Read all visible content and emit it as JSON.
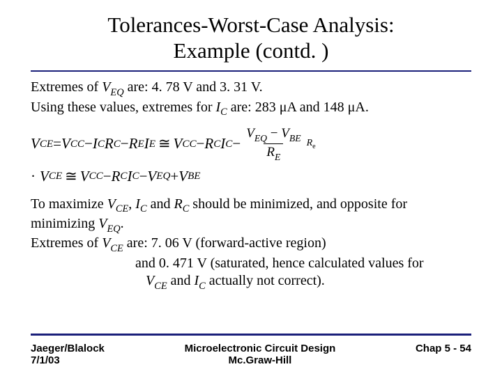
{
  "title_line1": "Tolerances-Worst-Case Analysis:",
  "title_line2": "Example (contd. )",
  "p1a": "Extremes of ",
  "p1b": " are: 4. 78 V and 3. 31 V.",
  "p2a": "Using these values, extremes for  ",
  "p2b": " are: 283 μA and 148 μA.",
  "eq1_lhs": "V",
  "eq1_lhs_sub": "CE",
  "eq_eq": "=",
  "eq_minus": "−",
  "eq_plus": "+",
  "vcc": "V",
  "vcc_sub": "CC",
  "ic": "I",
  "ic_sub": "C",
  "rc": "R",
  "rc_sub": "C",
  "ie": "I",
  "ie_sub": "E",
  "re": "R",
  "re_sub": "E",
  "veq": "V",
  "veq_sub": "EQ",
  "vbe": "V",
  "vbe_sub": "BE",
  "approx": "≅",
  "frac_re": "R",
  "frac_re_sub": "E",
  "frac_re_tail": "e",
  "eq2_lead": "·",
  "p3a": "To maximize ",
  "p3b": ", ",
  "p3c": " and ",
  "p3d": " should be minimized, and opposite for",
  "p4a": "minimizing ",
  "p4b": ".",
  "p5a": "Extremes of ",
  "p5b": " are: 7. 06 V (forward-active region)",
  "p6": "and 0. 471 V (saturated, hence calculated values for",
  "p7a": "",
  "p7b": " and ",
  "p7c": " actually not correct).",
  "foot_left1": "Jaeger/Blalock",
  "foot_left2": "7/1/03",
  "foot_center1": "Microelectronic Circuit Design",
  "foot_center2": "Mc.Graw-Hill",
  "foot_right": "Chap 5 - 54"
}
